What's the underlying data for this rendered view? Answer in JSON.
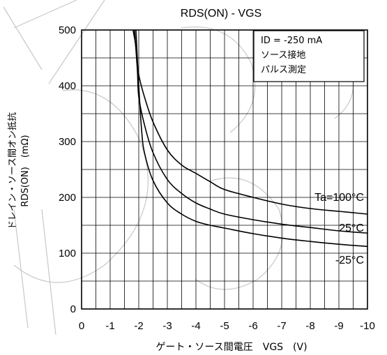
{
  "chart_data": {
    "type": "line",
    "title": "RDS(ON) - VGS",
    "xlabel": "ゲート・ソース間電圧　VGS　(V)",
    "ylabel_line1": "ドレイン・ソース間オン抵抗",
    "ylabel_line2": "RDS(ON)　(mΩ)",
    "xlim": [
      0,
      -10
    ],
    "ylim": [
      0,
      500
    ],
    "x_ticks": [
      "0",
      "-1",
      "-2",
      "-3",
      "-4",
      "-5",
      "-6",
      "-7",
      "-8",
      "-9",
      "-10"
    ],
    "y_ticks": [
      "0",
      "100",
      "200",
      "300",
      "400",
      "500"
    ],
    "grid": true,
    "conditions": [
      "ID = -250  mA",
      "ソース接地",
      "パルス測定"
    ],
    "conditions_position": "top-right",
    "series": [
      {
        "name": "Ta=100°C",
        "points": [
          [
            -1.8,
            500
          ],
          [
            -1.9,
            470
          ],
          [
            -2.0,
            420
          ],
          [
            -2.2,
            380
          ],
          [
            -2.5,
            335
          ],
          [
            -3.0,
            285
          ],
          [
            -3.5,
            258
          ],
          [
            -4.0,
            243
          ],
          [
            -4.5,
            228
          ],
          [
            -5.0,
            214
          ],
          [
            -6.0,
            200
          ],
          [
            -7.0,
            188
          ],
          [
            -8.0,
            180
          ],
          [
            -9.0,
            175
          ],
          [
            -10.0,
            170
          ]
        ]
      },
      {
        "name": "25°C",
        "points": [
          [
            -1.85,
            500
          ],
          [
            -1.95,
            430
          ],
          [
            -2.0,
            380
          ],
          [
            -2.2,
            330
          ],
          [
            -2.5,
            280
          ],
          [
            -3.0,
            232
          ],
          [
            -3.5,
            207
          ],
          [
            -4.0,
            190
          ],
          [
            -4.5,
            179
          ],
          [
            -5.0,
            170
          ],
          [
            -6.0,
            160
          ],
          [
            -7.0,
            152
          ],
          [
            -8.0,
            146
          ],
          [
            -9.0,
            140
          ],
          [
            -10.0,
            136
          ]
        ]
      },
      {
        "name": "-25°C",
        "points": [
          [
            -1.9,
            500
          ],
          [
            -2.0,
            400
          ],
          [
            -2.1,
            320
          ],
          [
            -2.2,
            280
          ],
          [
            -2.5,
            230
          ],
          [
            -3.0,
            190
          ],
          [
            -3.5,
            170
          ],
          [
            -4.0,
            157
          ],
          [
            -4.5,
            150
          ],
          [
            -5.0,
            145
          ],
          [
            -6.0,
            135
          ],
          [
            -7.0,
            127
          ],
          [
            -8.0,
            121
          ],
          [
            -9.0,
            116
          ],
          [
            -10.0,
            112
          ]
        ]
      }
    ]
  }
}
